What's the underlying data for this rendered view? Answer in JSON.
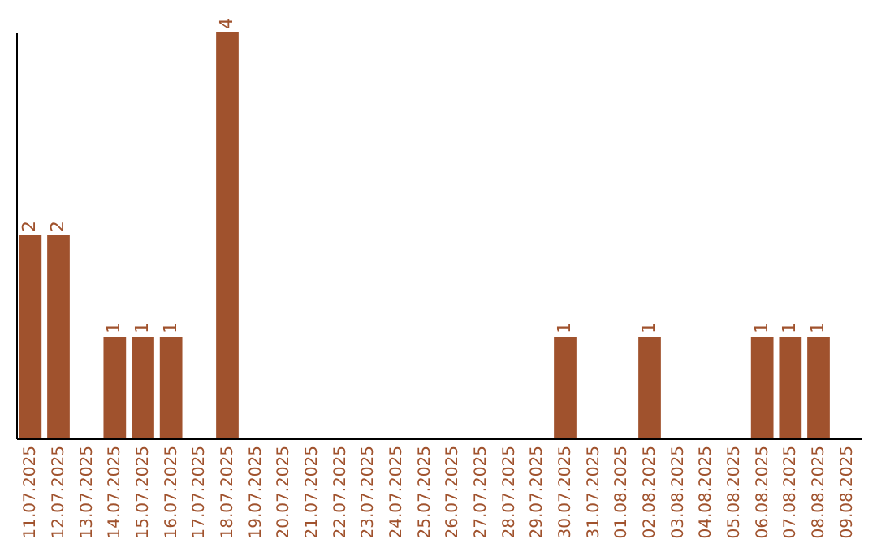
{
  "chart_data": {
    "type": "bar",
    "categories": [
      "11.07.2025",
      "12.07.2025",
      "13.07.2025",
      "14.07.2025",
      "15.07.2025",
      "16.07.2025",
      "17.07.2025",
      "18.07.2025",
      "19.07.2025",
      "20.07.2025",
      "21.07.2025",
      "22.07.2025",
      "23.07.2025",
      "24.07.2025",
      "25.07.2025",
      "26.07.2025",
      "27.07.2025",
      "28.07.2025",
      "29.07.2025",
      "30.07.2025",
      "31.07.2025",
      "01.08.2025",
      "02.08.2025",
      "03.08.2025",
      "04.08.2025",
      "05.08.2025",
      "06.08.2025",
      "07.08.2025",
      "08.08.2025",
      "09.08.2025"
    ],
    "values": [
      2,
      2,
      0,
      1,
      1,
      1,
      0,
      4,
      0,
      0,
      0,
      0,
      0,
      0,
      0,
      0,
      0,
      0,
      0,
      1,
      0,
      0,
      1,
      0,
      0,
      0,
      1,
      1,
      1,
      0
    ],
    "value_labels": [
      "2",
      "2",
      null,
      "1",
      "1",
      "1",
      null,
      "4",
      null,
      null,
      null,
      null,
      null,
      null,
      null,
      null,
      null,
      null,
      null,
      "1",
      null,
      null,
      "1",
      null,
      null,
      null,
      "1",
      "1",
      "1",
      null
    ],
    "color": "#a0522d",
    "tick_labels": "x",
    "grid": false
  }
}
